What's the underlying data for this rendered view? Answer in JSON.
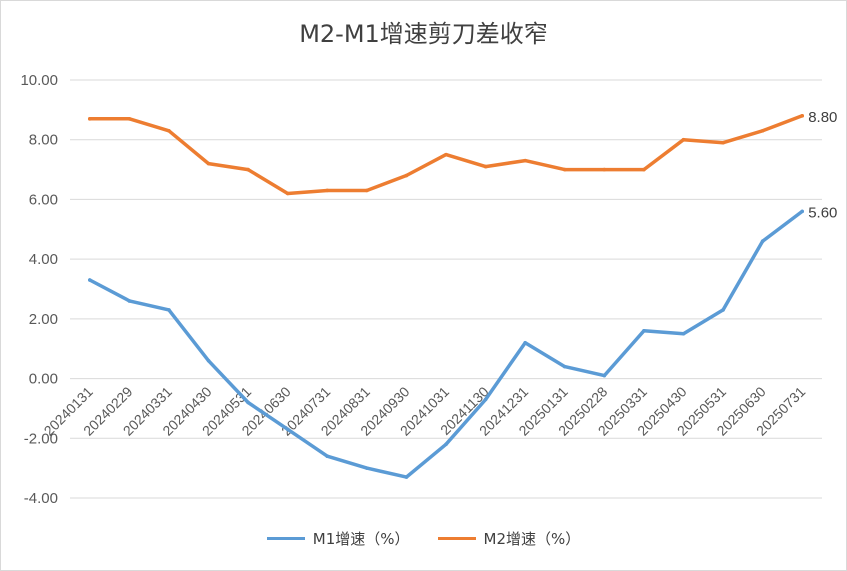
{
  "chart_data": {
    "type": "line",
    "title": "M2-M1增速剪刀差收窄",
    "xlabel": "",
    "ylabel": "",
    "ylim": [
      -4,
      10
    ],
    "yticks": [
      "-4.00",
      "-2.00",
      "0.00",
      "2.00",
      "4.00",
      "6.00",
      "8.00",
      "10.00"
    ],
    "grid": true,
    "legend_position": "bottom",
    "categories": [
      "20240131",
      "20240229",
      "20240331",
      "20240430",
      "20240531",
      "20240630",
      "20240731",
      "20240831",
      "20240930",
      "20241031",
      "20241130",
      "20241231",
      "20250131",
      "20250228",
      "20250331",
      "20250430",
      "20250531",
      "20250630",
      "20250731"
    ],
    "series": [
      {
        "name": "M1增速（%）",
        "color": "#5b9bd5",
        "values": [
          3.3,
          2.6,
          2.3,
          0.6,
          -0.8,
          -1.7,
          -2.6,
          -3.0,
          -3.3,
          -2.2,
          -0.7,
          1.2,
          0.4,
          0.1,
          1.6,
          1.5,
          2.3,
          4.6,
          5.6
        ],
        "end_label": "5.60"
      },
      {
        "name": "M2增速（%）",
        "color": "#ed7d31",
        "values": [
          8.7,
          8.7,
          8.3,
          7.2,
          7.0,
          6.2,
          6.3,
          6.3,
          6.8,
          7.5,
          7.1,
          7.3,
          7.0,
          7.0,
          7.0,
          8.0,
          7.9,
          8.3,
          8.8
        ],
        "end_label": "8.80"
      }
    ]
  }
}
